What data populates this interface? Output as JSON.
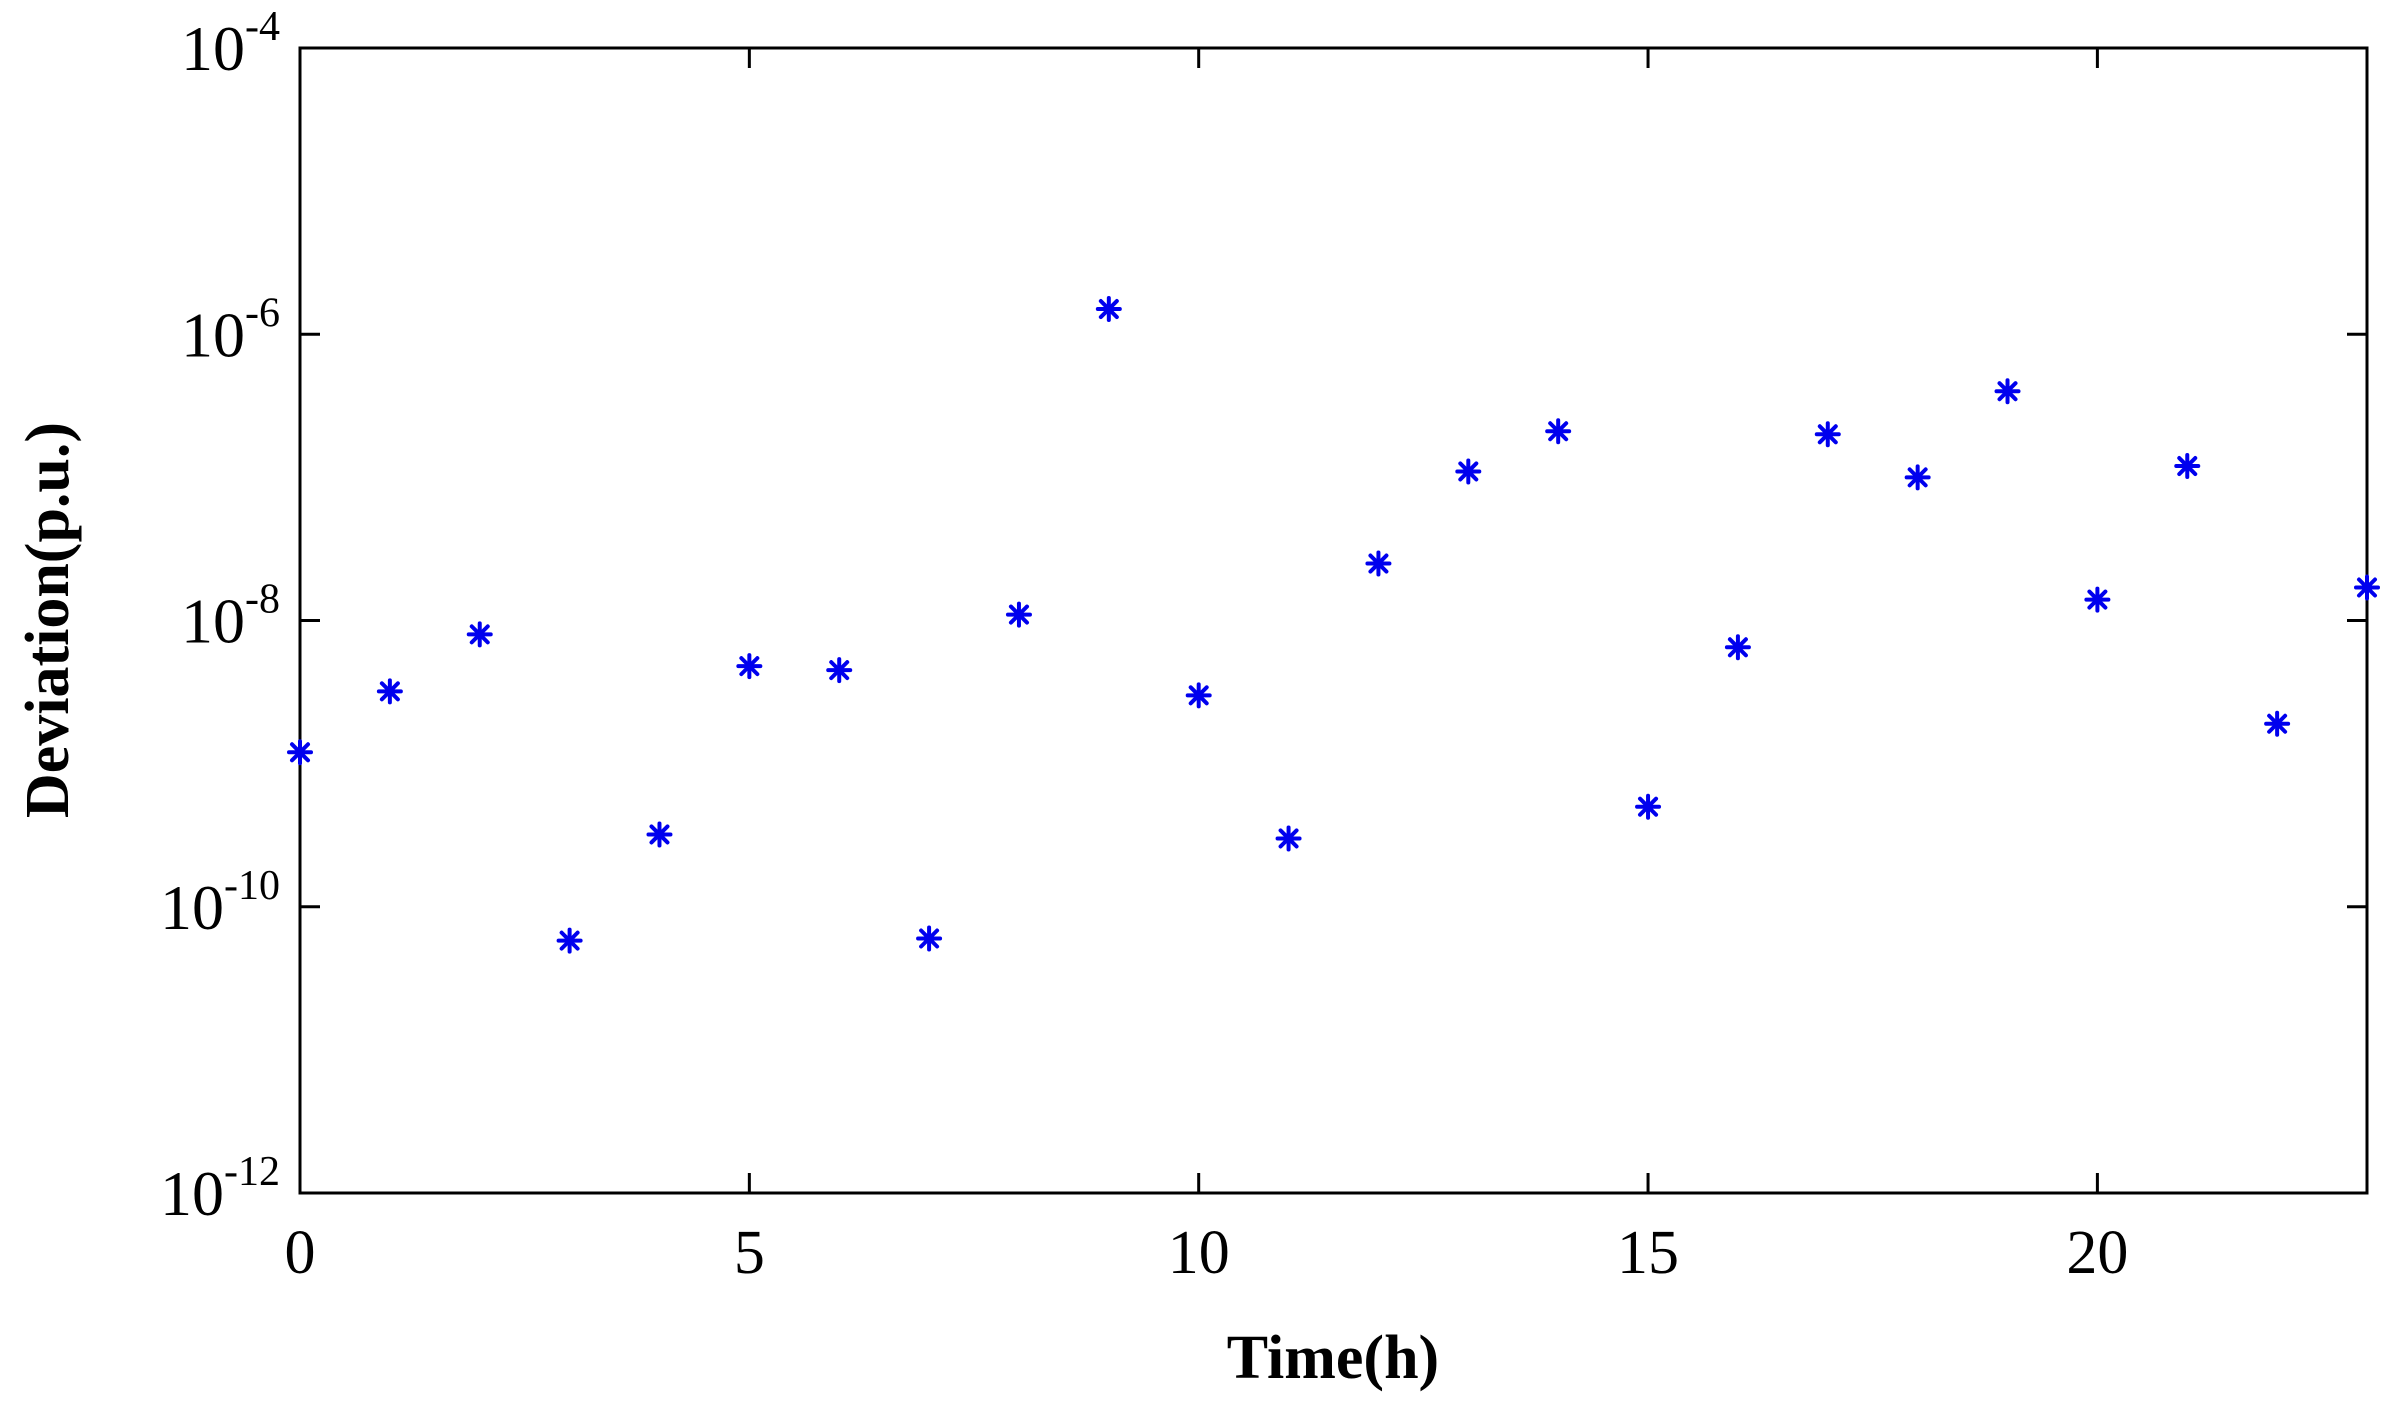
{
  "chart_data": {
    "type": "scatter",
    "title": "",
    "xlabel": "Time(h)",
    "ylabel": "Deviation(p.u.)",
    "xlim": [
      0,
      23
    ],
    "ylim": [
      1e-12,
      0.0001
    ],
    "yscale": "log",
    "grid": false,
    "legend": "none",
    "marker": "asterisk",
    "x_ticks": [
      0,
      5,
      10,
      15,
      20
    ],
    "x_tick_labels": [
      "0",
      "5",
      "10",
      "15",
      "20"
    ],
    "y_ticks": [
      {
        "value": 1e-12,
        "base": "10",
        "exponent": "-12"
      },
      {
        "value": 1e-10,
        "base": "10",
        "exponent": "-10"
      },
      {
        "value": 1e-08,
        "base": "10",
        "exponent": "-8"
      },
      {
        "value": 1e-06,
        "base": "10",
        "exponent": "-6"
      },
      {
        "value": 0.0001,
        "base": "10",
        "exponent": "-4"
      }
    ],
    "series": [
      {
        "color": "#0000ee",
        "points": [
          {
            "x": 0,
            "y": 1.2e-09
          },
          {
            "x": 1,
            "y": 3.2e-09
          },
          {
            "x": 2,
            "y": 8e-09
          },
          {
            "x": 3,
            "y": 5.8e-11
          },
          {
            "x": 4,
            "y": 3.2e-10
          },
          {
            "x": 5,
            "y": 4.8e-09
          },
          {
            "x": 6,
            "y": 4.5e-09
          },
          {
            "x": 7,
            "y": 6e-11
          },
          {
            "x": 8,
            "y": 1.1e-08
          },
          {
            "x": 9,
            "y": 1.5e-06
          },
          {
            "x": 10,
            "y": 3e-09
          },
          {
            "x": 11,
            "y": 3e-10
          },
          {
            "x": 12,
            "y": 2.5e-08
          },
          {
            "x": 13,
            "y": 1.1e-07
          },
          {
            "x": 14,
            "y": 2.1e-07
          },
          {
            "x": 15,
            "y": 5e-10
          },
          {
            "x": 16,
            "y": 6.5e-09
          },
          {
            "x": 17,
            "y": 2e-07
          },
          {
            "x": 18,
            "y": 1e-07
          },
          {
            "x": 19,
            "y": 4e-07
          },
          {
            "x": 20,
            "y": 1.4e-08
          },
          {
            "x": 21,
            "y": 1.2e-07
          },
          {
            "x": 22,
            "y": 1.9e-09
          },
          {
            "x": 23,
            "y": 1.7e-08
          }
        ]
      }
    ]
  }
}
